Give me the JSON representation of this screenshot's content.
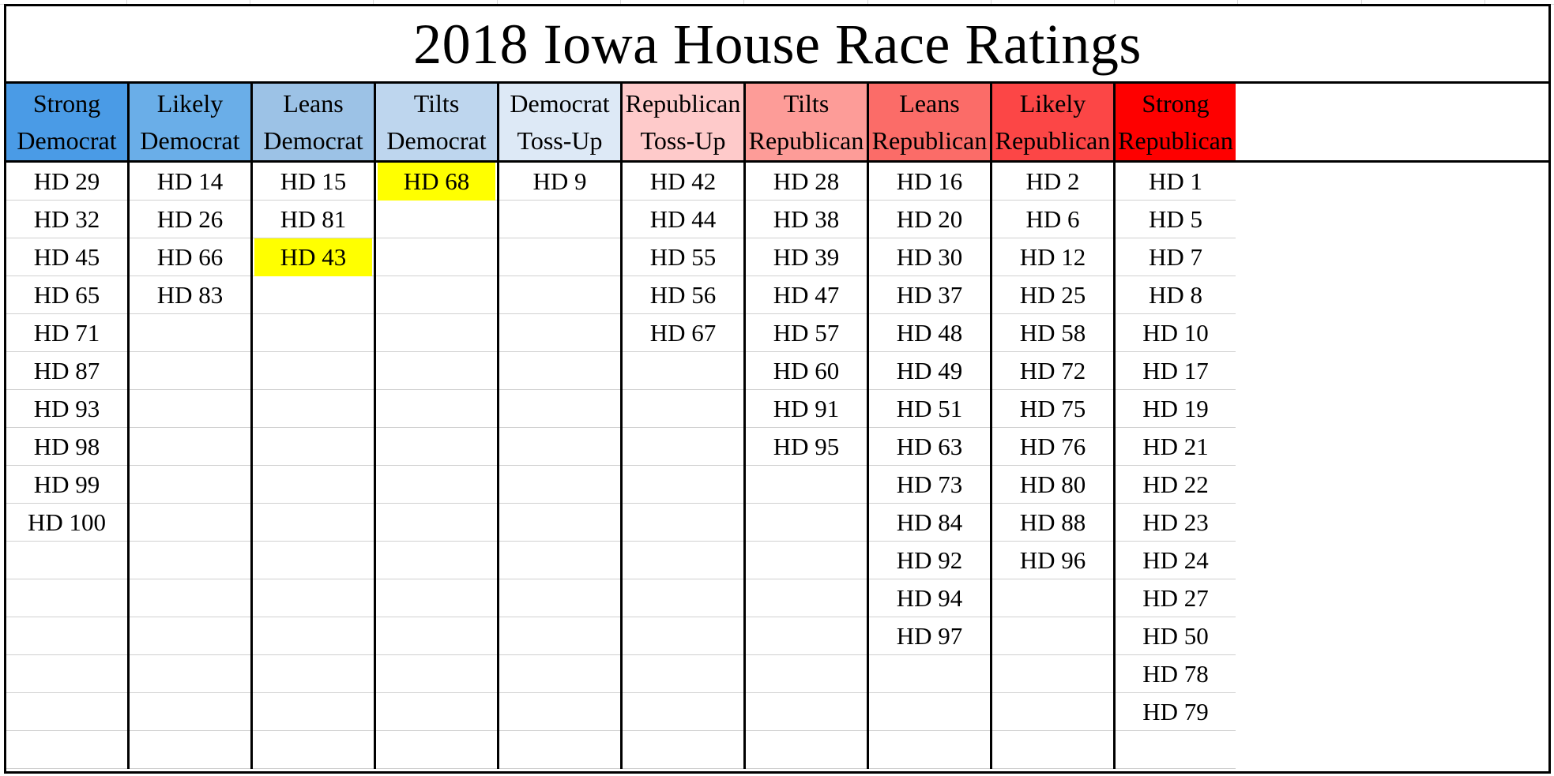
{
  "title": "2018 Iowa House Race Ratings",
  "columns": [
    {
      "header_line1": "Strong",
      "header_line2": "Democrat",
      "header_bg": "#4a9be6",
      "districts": [
        "HD 29",
        "HD 32",
        "HD 45",
        "HD 65",
        "HD 71",
        "HD 87",
        "HD 93",
        "HD 98",
        "HD 99",
        "HD 100"
      ],
      "highlighted": []
    },
    {
      "header_line1": "Likely",
      "header_line2": "Democrat",
      "header_bg": "#6aaee8",
      "districts": [
        "HD 14",
        "HD 26",
        "HD 66",
        "HD 83"
      ],
      "highlighted": []
    },
    {
      "header_line1": "Leans",
      "header_line2": "Democrat",
      "header_bg": "#9cc2e6",
      "districts": [
        "HD 15",
        "HD 81",
        "HD 43"
      ],
      "highlighted": [
        "HD 43"
      ]
    },
    {
      "header_line1": "Tilts",
      "header_line2": "Democrat",
      "header_bg": "#bed6ee",
      "districts": [
        "HD 68"
      ],
      "highlighted": [
        "HD 68"
      ]
    },
    {
      "header_line1": "Democrat",
      "header_line2": "Toss-Up",
      "header_bg": "#dde9f6",
      "districts": [
        "HD 9"
      ],
      "highlighted": []
    },
    {
      "header_line1": "Republican",
      "header_line2": "Toss-Up",
      "header_bg": "#fecaca",
      "districts": [
        "HD 42",
        "HD 44",
        "HD 55",
        "HD 56",
        "HD 67"
      ],
      "highlighted": []
    },
    {
      "header_line1": "Tilts",
      "header_line2": "Republican",
      "header_bg": "#fd9c98",
      "districts": [
        "HD 28",
        "HD 38",
        "HD 39",
        "HD 47",
        "HD 57",
        "HD 60",
        "HD 91",
        "HD 95"
      ],
      "highlighted": []
    },
    {
      "header_line1": "Leans",
      "header_line2": "Republican",
      "header_bg": "#fb6c68",
      "districts": [
        "HD 16",
        "HD 20",
        "HD 30",
        "HD 37",
        "HD 48",
        "HD 49",
        "HD 51",
        "HD 63",
        "HD 73",
        "HD 84",
        "HD 92",
        "HD 94",
        "HD 97"
      ],
      "highlighted": []
    },
    {
      "header_line1": "Likely",
      "header_line2": "Republican",
      "header_bg": "#fc4646",
      "districts": [
        "HD 2",
        "HD 6",
        "HD 12",
        "HD 25",
        "HD 58",
        "HD 72",
        "HD 75",
        "HD 76",
        "HD 80",
        "HD 88",
        "HD 96"
      ],
      "highlighted": []
    },
    {
      "header_line1": "Strong",
      "header_line2": "Republican",
      "header_bg": "#fe0000",
      "districts": [
        "HD 1",
        "HD 5",
        "HD 7",
        "HD 8",
        "HD 10",
        "HD 17",
        "HD 19",
        "HD 21",
        "HD 22",
        "HD 23",
        "HD 24",
        "HD 27",
        "HD 50",
        "HD 78",
        "HD 79"
      ],
      "highlighted": []
    }
  ],
  "colors": {
    "highlight": "#ffff00",
    "border": "#000000",
    "gridline": "#d0d0d0"
  }
}
